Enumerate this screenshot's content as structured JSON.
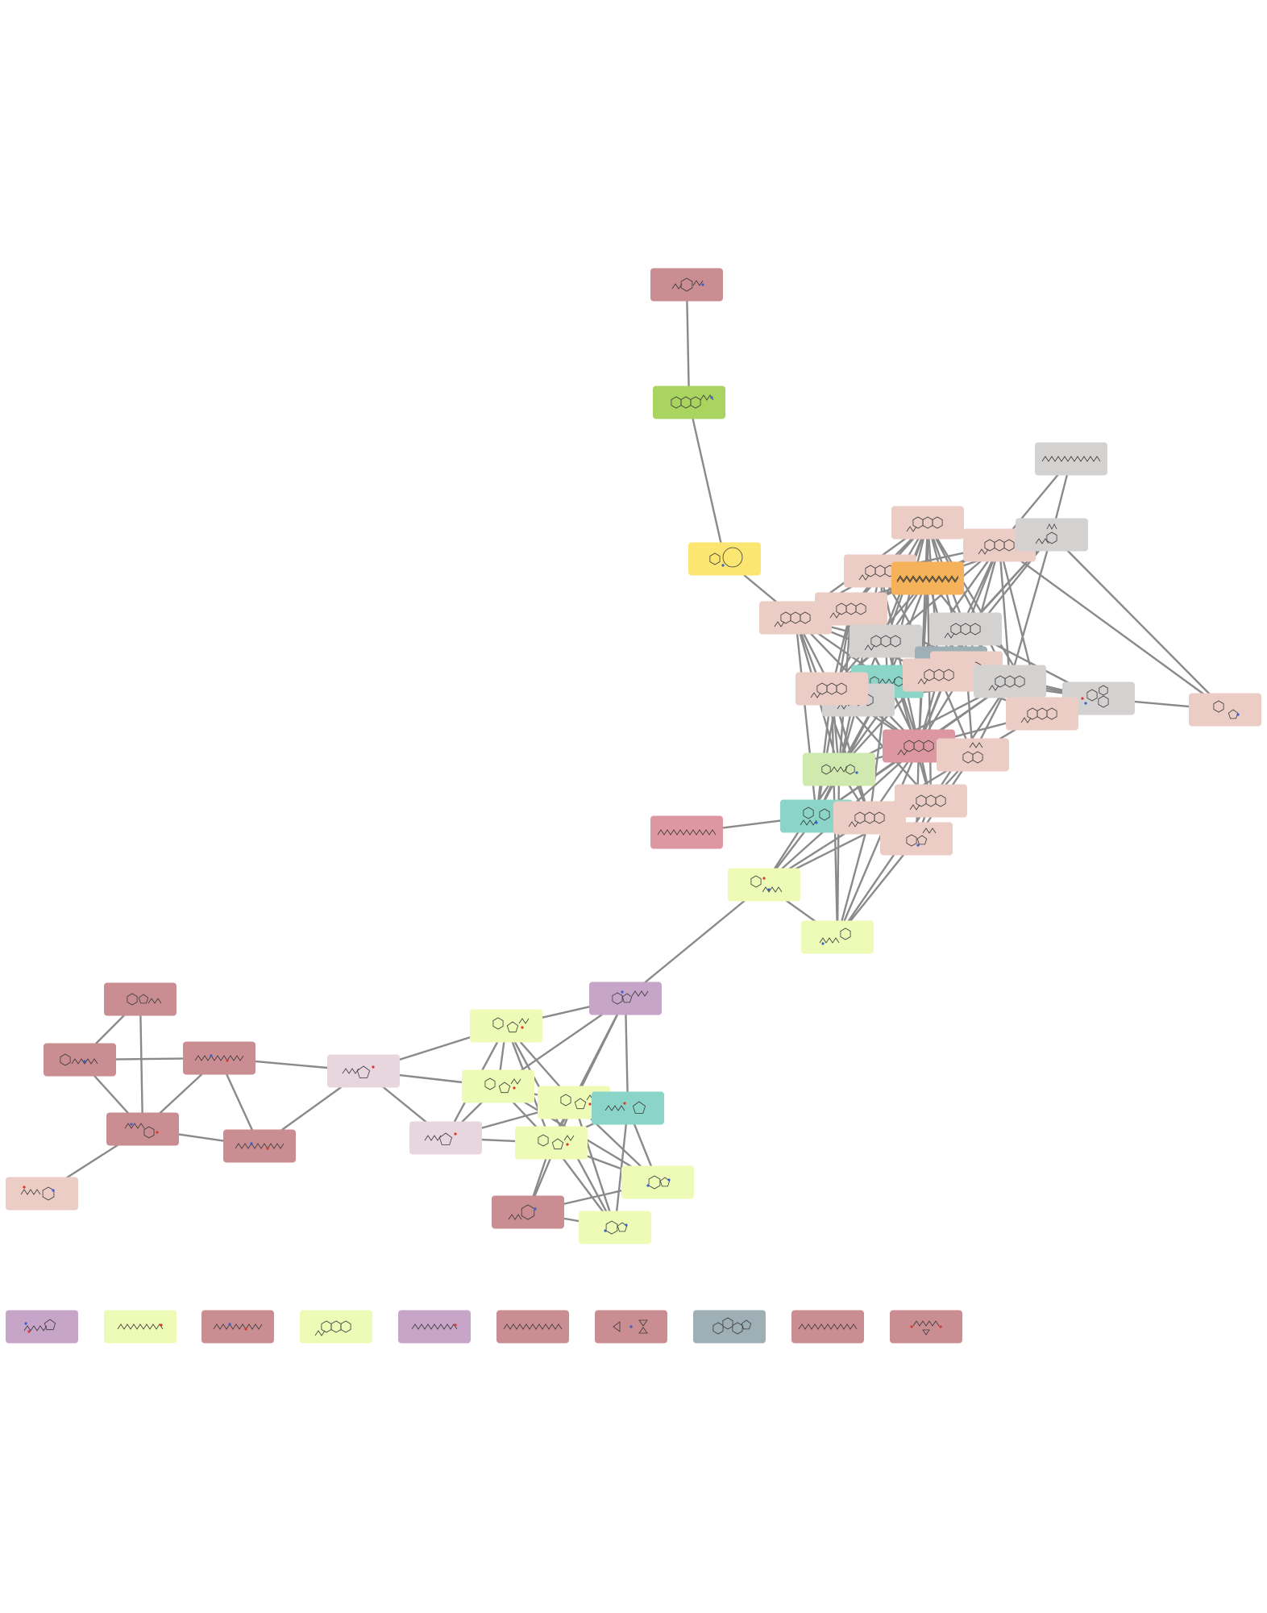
{
  "colors": {
    "edge": "#8a8a8a",
    "background": "#ffffff",
    "dusty_red": "#c98d92",
    "dark_rose": "#dc97a0",
    "peach": "#ebcdc6",
    "light_gray": "#d4d1d1",
    "mint": "#8ad5c8",
    "pale_yellow": "#eefbb6",
    "lime": "#a9d460",
    "yellow": "#fbe671",
    "orange": "#f6b25b",
    "purple": "#c6a5c8",
    "pale_pink": "#e8d6df",
    "slate": "#9eafb6",
    "pale_green": "#cfe9ae"
  },
  "nodes": [
    {
      "id": "n1",
      "color": "dusty_red",
      "icon": "molecule-polyhalogenated-icon"
    },
    {
      "id": "n2",
      "color": "lime",
      "icon": "molecule-tricyclic-icon"
    },
    {
      "id": "n3",
      "color": "yellow",
      "icon": "molecule-macrocycle-icon"
    },
    {
      "id": "n4",
      "color": "light_gray",
      "icon": "molecule-long-chain-icon"
    },
    {
      "id": "n5",
      "color": "peach",
      "icon": "molecule-polycyclic-icon"
    },
    {
      "id": "n6",
      "color": "peach",
      "icon": "molecule-polycyclic-icon"
    },
    {
      "id": "n7",
      "color": "light_gray",
      "icon": "molecule-branched-icon"
    },
    {
      "id": "n8",
      "color": "peach",
      "icon": "molecule-polycyclic-icon"
    },
    {
      "id": "n9",
      "color": "orange",
      "icon": "molecule-linear-polyene-icon"
    },
    {
      "id": "n10",
      "color": "peach",
      "icon": "molecule-polycyclic-icon"
    },
    {
      "id": "n11",
      "color": "peach",
      "icon": "molecule-polycyclic-icon"
    },
    {
      "id": "n12",
      "color": "light_gray",
      "icon": "molecule-polycyclic-icon"
    },
    {
      "id": "n13",
      "color": "light_gray",
      "icon": "molecule-polycyclic-icon"
    },
    {
      "id": "n14",
      "color": "slate",
      "icon": "molecule-polycyclic-icon"
    },
    {
      "id": "n15",
      "color": "peach",
      "icon": "molecule-polycyclic-icon"
    },
    {
      "id": "n16",
      "color": "mint",
      "icon": "molecule-linked-rings-icon"
    },
    {
      "id": "n17",
      "color": "peach",
      "icon": "molecule-polycyclic-icon"
    },
    {
      "id": "n18",
      "color": "light_gray",
      "icon": "molecule-polycyclic-icon"
    },
    {
      "id": "n19",
      "color": "light_gray",
      "icon": "molecule-polycyclic-icon"
    },
    {
      "id": "n20",
      "color": "peach",
      "icon": "molecule-polycyclic-icon"
    },
    {
      "id": "n21",
      "color": "light_gray",
      "icon": "molecule-triphenyl-icon"
    },
    {
      "id": "n22",
      "color": "peach",
      "icon": "molecule-biaryl-icon"
    },
    {
      "id": "n23",
      "color": "peach",
      "icon": "molecule-polycyclic-icon"
    },
    {
      "id": "n24",
      "color": "dark_rose",
      "icon": "molecule-polycyclic-icon"
    },
    {
      "id": "n25",
      "color": "peach",
      "icon": "molecule-naphthalene-icon"
    },
    {
      "id": "n26",
      "color": "pale_green",
      "icon": "molecule-linked-rings-icon"
    },
    {
      "id": "n27",
      "color": "peach",
      "icon": "molecule-polycyclic-icon"
    },
    {
      "id": "n28",
      "color": "mint",
      "icon": "molecule-amide-rings-icon"
    },
    {
      "id": "n29",
      "color": "peach",
      "icon": "molecule-polycyclic-icon"
    },
    {
      "id": "n30",
      "color": "peach",
      "icon": "molecule-indole-icon"
    },
    {
      "id": "n31",
      "color": "dark_rose",
      "icon": "molecule-long-chain-icon"
    },
    {
      "id": "n32",
      "color": "pale_yellow",
      "icon": "molecule-hydrazone-icon"
    },
    {
      "id": "n33",
      "color": "pale_yellow",
      "icon": "molecule-guanidine-icon"
    },
    {
      "id": "n34",
      "color": "purple",
      "icon": "molecule-purine-chain-icon"
    },
    {
      "id": "n35",
      "color": "pale_yellow",
      "icon": "molecule-nucleoside-icon"
    },
    {
      "id": "n36",
      "color": "pale_yellow",
      "icon": "molecule-nucleoside-icon"
    },
    {
      "id": "n37",
      "color": "pale_yellow",
      "icon": "molecule-nucleoside-icon"
    },
    {
      "id": "n38",
      "color": "mint",
      "icon": "molecule-ring-chain-icon"
    },
    {
      "id": "n39",
      "color": "pale_yellow",
      "icon": "molecule-nucleoside-icon"
    },
    {
      "id": "n40",
      "color": "pale_pink",
      "icon": "molecule-sugar-icon"
    },
    {
      "id": "n41",
      "color": "pale_pink",
      "icon": "molecule-sugar-icon"
    },
    {
      "id": "n42",
      "color": "pale_yellow",
      "icon": "molecule-purine-icon"
    },
    {
      "id": "n43",
      "color": "dusty_red",
      "icon": "molecule-pyrimidine-icon"
    },
    {
      "id": "n44",
      "color": "pale_yellow",
      "icon": "molecule-purine-icon"
    },
    {
      "id": "n45",
      "color": "dusty_red",
      "icon": "molecule-spiro-icon"
    },
    {
      "id": "n46",
      "color": "dusty_red",
      "icon": "molecule-piperidine-icon"
    },
    {
      "id": "n47",
      "color": "dusty_red",
      "icon": "molecule-peptide-icon"
    },
    {
      "id": "n48",
      "color": "dusty_red",
      "icon": "molecule-ring-amine-icon"
    },
    {
      "id": "n49",
      "color": "dusty_red",
      "icon": "molecule-peptide-icon"
    },
    {
      "id": "n50",
      "color": "peach",
      "icon": "molecule-cyclic-peptide-icon"
    }
  ],
  "isolated_nodes": [
    {
      "id": "i1",
      "color": "purple",
      "icon": "molecule-amino-acid-icon"
    },
    {
      "id": "i2",
      "color": "pale_yellow",
      "icon": "molecule-chain-icon"
    },
    {
      "id": "i3",
      "color": "dusty_red",
      "icon": "molecule-peptide-icon"
    },
    {
      "id": "i4",
      "color": "pale_yellow",
      "icon": "molecule-polycyclic-icon"
    },
    {
      "id": "i5",
      "color": "purple",
      "icon": "molecule-chain-icon"
    },
    {
      "id": "i6",
      "color": "dusty_red",
      "icon": "molecule-long-chain-icon"
    },
    {
      "id": "i7",
      "color": "dusty_red",
      "icon": "molecule-aziridine-icon"
    },
    {
      "id": "i8",
      "color": "slate",
      "icon": "molecule-steroid-icon"
    },
    {
      "id": "i9",
      "color": "dusty_red",
      "icon": "molecule-long-chain-icon"
    },
    {
      "id": "i10",
      "color": "dusty_red",
      "icon": "molecule-cyclopropyl-icon"
    }
  ],
  "edges": [
    [
      "n1",
      "n2"
    ],
    [
      "n2",
      "n3"
    ],
    [
      "n3",
      "n10"
    ],
    [
      "n4",
      "n7"
    ],
    [
      "n4",
      "n6"
    ],
    [
      "n5",
      "n6"
    ],
    [
      "n5",
      "n8"
    ],
    [
      "n5",
      "n9"
    ],
    [
      "n5",
      "n10"
    ],
    [
      "n5",
      "n11"
    ],
    [
      "n5",
      "n12"
    ],
    [
      "n5",
      "n13"
    ],
    [
      "n5",
      "n15"
    ],
    [
      "n5",
      "n16"
    ],
    [
      "n5",
      "n17"
    ],
    [
      "n5",
      "n18"
    ],
    [
      "n5",
      "n19"
    ],
    [
      "n5",
      "n20"
    ],
    [
      "n5",
      "n23"
    ],
    [
      "n5",
      "n24"
    ],
    [
      "n6",
      "n8"
    ],
    [
      "n6",
      "n9"
    ],
    [
      "n6",
      "n11"
    ],
    [
      "n6",
      "n13"
    ],
    [
      "n6",
      "n15"
    ],
    [
      "n6",
      "n17"
    ],
    [
      "n6",
      "n19"
    ],
    [
      "n6",
      "n20"
    ],
    [
      "n6",
      "n22"
    ],
    [
      "n6",
      "n23"
    ],
    [
      "n6",
      "n26"
    ],
    [
      "n7",
      "n9"
    ],
    [
      "n7",
      "n13"
    ],
    [
      "n7",
      "n17"
    ],
    [
      "n7",
      "n19"
    ],
    [
      "n7",
      "n22"
    ],
    [
      "n7",
      "n26"
    ],
    [
      "n8",
      "n10"
    ],
    [
      "n8",
      "n11"
    ],
    [
      "n8",
      "n12"
    ],
    [
      "n8",
      "n17"
    ],
    [
      "n8",
      "n24"
    ],
    [
      "n8",
      "n26"
    ],
    [
      "n9",
      "n10"
    ],
    [
      "n9",
      "n11"
    ],
    [
      "n9",
      "n12"
    ],
    [
      "n9",
      "n14"
    ],
    [
      "n9",
      "n16"
    ],
    [
      "n9",
      "n19"
    ],
    [
      "n9",
      "n20"
    ],
    [
      "n9",
      "n24"
    ],
    [
      "n9",
      "n27"
    ],
    [
      "n10",
      "n11"
    ],
    [
      "n10",
      "n12"
    ],
    [
      "n10",
      "n16"
    ],
    [
      "n10",
      "n17"
    ],
    [
      "n10",
      "n20"
    ],
    [
      "n10",
      "n24"
    ],
    [
      "n10",
      "n26"
    ],
    [
      "n10",
      "n28"
    ],
    [
      "n10",
      "n29"
    ],
    [
      "n11",
      "n12"
    ],
    [
      "n11",
      "n16"
    ],
    [
      "n11",
      "n19"
    ],
    [
      "n11",
      "n20"
    ],
    [
      "n11",
      "n24"
    ],
    [
      "n11",
      "n26"
    ],
    [
      "n11",
      "n28"
    ],
    [
      "n12",
      "n16"
    ],
    [
      "n12",
      "n19"
    ],
    [
      "n12",
      "n20"
    ],
    [
      "n12",
      "n24"
    ],
    [
      "n12",
      "n27"
    ],
    [
      "n13",
      "n15"
    ],
    [
      "n13",
      "n19"
    ],
    [
      "n13",
      "n21"
    ],
    [
      "n13",
      "n23"
    ],
    [
      "n13",
      "n24"
    ],
    [
      "n14",
      "n16"
    ],
    [
      "n14",
      "n19"
    ],
    [
      "n14",
      "n24"
    ],
    [
      "n15",
      "n17"
    ],
    [
      "n15",
      "n19"
    ],
    [
      "n15",
      "n21"
    ],
    [
      "n15",
      "n23"
    ],
    [
      "n15",
      "n24"
    ],
    [
      "n15",
      "n25"
    ],
    [
      "n16",
      "n17"
    ],
    [
      "n16",
      "n19"
    ],
    [
      "n16",
      "n20"
    ],
    [
      "n16",
      "n24"
    ],
    [
      "n16",
      "n26"
    ],
    [
      "n16",
      "n28"
    ],
    [
      "n16",
      "n29"
    ],
    [
      "n17",
      "n19"
    ],
    [
      "n17",
      "n21"
    ],
    [
      "n17",
      "n23"
    ],
    [
      "n17",
      "n24"
    ],
    [
      "n17",
      "n25"
    ],
    [
      "n18",
      "n19"
    ],
    [
      "n18",
      "n20"
    ],
    [
      "n18",
      "n24"
    ],
    [
      "n18",
      "n26"
    ],
    [
      "n19",
      "n20"
    ],
    [
      "n19",
      "n21"
    ],
    [
      "n19",
      "n23"
    ],
    [
      "n19",
      "n24"
    ],
    [
      "n19",
      "n25"
    ],
    [
      "n19",
      "n26"
    ],
    [
      "n19",
      "n27"
    ],
    [
      "n19",
      "n28"
    ],
    [
      "n20",
      "n24"
    ],
    [
      "n20",
      "n26"
    ],
    [
      "n20",
      "n27"
    ],
    [
      "n20",
      "n28"
    ],
    [
      "n20",
      "n29"
    ],
    [
      "n20",
      "n33"
    ],
    [
      "n21",
      "n22"
    ],
    [
      "n21",
      "n23"
    ],
    [
      "n23",
      "n24"
    ],
    [
      "n23",
      "n25"
    ],
    [
      "n24",
      "n25"
    ],
    [
      "n24",
      "n26"
    ],
    [
      "n24",
      "n27"
    ],
    [
      "n24",
      "n28"
    ],
    [
      "n24",
      "n29"
    ],
    [
      "n24",
      "n30"
    ],
    [
      "n24",
      "n32"
    ],
    [
      "n24",
      "n33"
    ],
    [
      "n25",
      "n27"
    ],
    [
      "n25",
      "n29"
    ],
    [
      "n25",
      "n30"
    ],
    [
      "n26",
      "n28"
    ],
    [
      "n26",
      "n29"
    ],
    [
      "n26",
      "n32"
    ],
    [
      "n26",
      "n33"
    ],
    [
      "n27",
      "n28"
    ],
    [
      "n27",
      "n30"
    ],
    [
      "n27",
      "n32"
    ],
    [
      "n27",
      "n33"
    ],
    [
      "n28",
      "n29"
    ],
    [
      "n28",
      "n31"
    ],
    [
      "n28",
      "n32"
    ],
    [
      "n29",
      "n30"
    ],
    [
      "n29",
      "n32"
    ],
    [
      "n29",
      "n33"
    ],
    [
      "n30",
      "n33"
    ],
    [
      "n32",
      "n33"
    ],
    [
      "n32",
      "n34"
    ],
    [
      "n34",
      "n35"
    ],
    [
      "n34",
      "n36"
    ],
    [
      "n34",
      "n37"
    ],
    [
      "n34",
      "n38"
    ],
    [
      "n34",
      "n39"
    ],
    [
      "n35",
      "n36"
    ],
    [
      "n35",
      "n37"
    ],
    [
      "n35",
      "n39"
    ],
    [
      "n35",
      "n40"
    ],
    [
      "n35",
      "n41"
    ],
    [
      "n35",
      "n44"
    ],
    [
      "n36",
      "n37"
    ],
    [
      "n36",
      "n39"
    ],
    [
      "n36",
      "n40"
    ],
    [
      "n36",
      "n41"
    ],
    [
      "n36",
      "n42"
    ],
    [
      "n37",
      "n38"
    ],
    [
      "n37",
      "n39"
    ],
    [
      "n37",
      "n41"
    ],
    [
      "n37",
      "n42"
    ],
    [
      "n37",
      "n43"
    ],
    [
      "n37",
      "n44"
    ],
    [
      "n38",
      "n39"
    ],
    [
      "n38",
      "n42"
    ],
    [
      "n38",
      "n44"
    ],
    [
      "n39",
      "n41"
    ],
    [
      "n39",
      "n42"
    ],
    [
      "n39",
      "n43"
    ],
    [
      "n39",
      "n44"
    ],
    [
      "n40",
      "n47"
    ],
    [
      "n40",
      "n49"
    ],
    [
      "n40",
      "n41"
    ],
    [
      "n42",
      "n43"
    ],
    [
      "n43",
      "n44"
    ],
    [
      "n45",
      "n46"
    ],
    [
      "n45",
      "n48"
    ],
    [
      "n46",
      "n47"
    ],
    [
      "n46",
      "n48"
    ],
    [
      "n47",
      "n48"
    ],
    [
      "n47",
      "n49"
    ],
    [
      "n48",
      "n49"
    ],
    [
      "n48",
      "n50"
    ]
  ]
}
